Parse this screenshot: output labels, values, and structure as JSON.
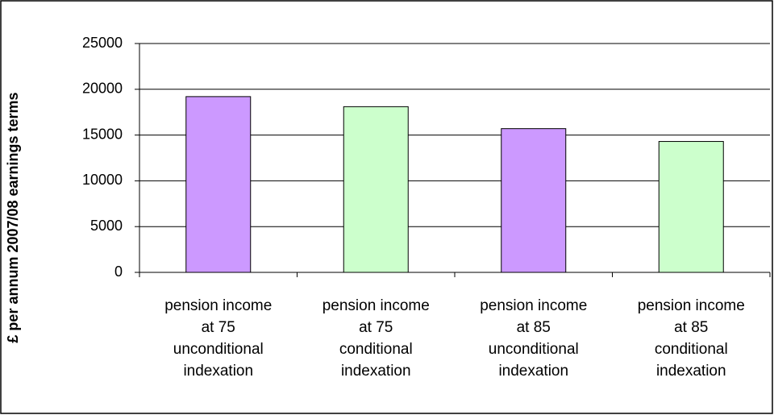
{
  "chart_data": {
    "type": "bar",
    "y_label": "£ per annum 2007/08 earnings terms",
    "categories": [
      "pension income\nat 75\nunconditional\nindexation",
      "pension income\nat 75\nconditional\nindexation",
      "pension income\nat 85\nunconditional\nindexation",
      "pension income\nat 85\nconditional\nindexation"
    ],
    "values": [
      19200,
      18100,
      15700,
      14300
    ],
    "colors": [
      "#cc99ff",
      "#ccffcc",
      "#cc99ff",
      "#ccffcc"
    ],
    "ylim": [
      0,
      25000
    ],
    "yticks": [
      0,
      5000,
      10000,
      15000,
      20000,
      25000
    ],
    "grid": true
  }
}
